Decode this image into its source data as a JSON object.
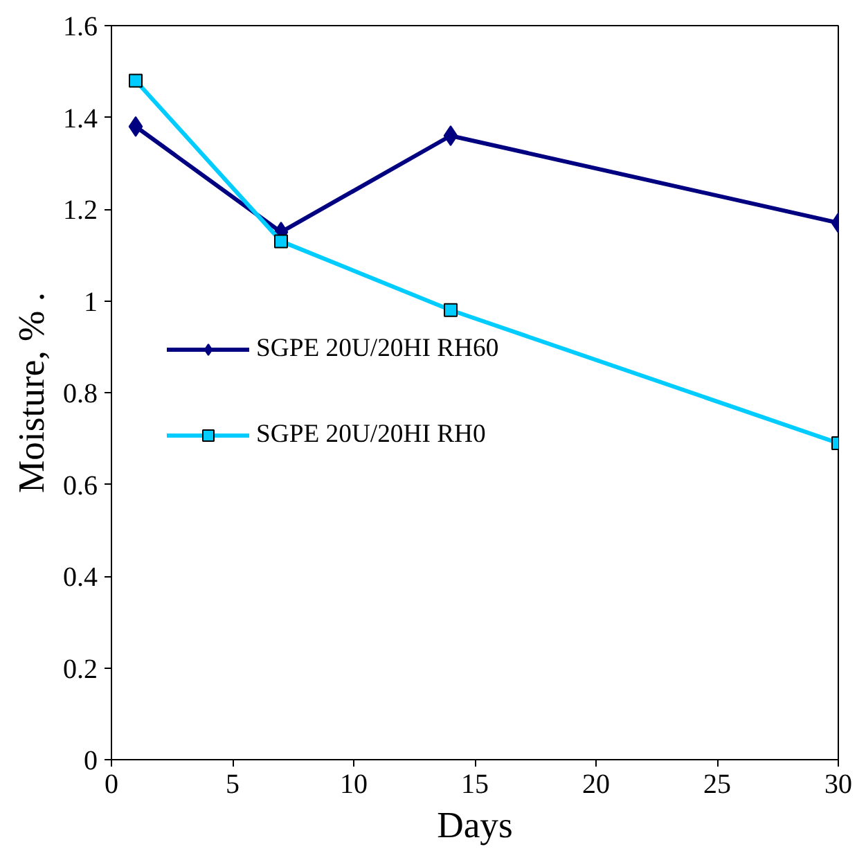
{
  "chart_data": {
    "type": "line",
    "xlabel": "Days",
    "ylabel": "Moisture, % .",
    "x": [
      1,
      7,
      14,
      30
    ],
    "series": [
      {
        "name": "SGPE 20U/20HI RH60",
        "color": "#000080",
        "marker": "diamond",
        "values": [
          1.38,
          1.15,
          1.36,
          1.17
        ]
      },
      {
        "name": "SGPE 20U/20HI RH0",
        "color": "#00ccff",
        "marker": "square",
        "values": [
          1.48,
          1.13,
          0.98,
          0.69
        ]
      }
    ],
    "xlim": [
      0,
      30
    ],
    "xticks": [
      0,
      5,
      10,
      15,
      20,
      25,
      30
    ],
    "ylim": [
      0,
      1.6
    ],
    "yticks": [
      0,
      0.2,
      0.4,
      0.6,
      0.8,
      1,
      1.2,
      1.4,
      1.6
    ],
    "grid": false,
    "legend": "left"
  }
}
